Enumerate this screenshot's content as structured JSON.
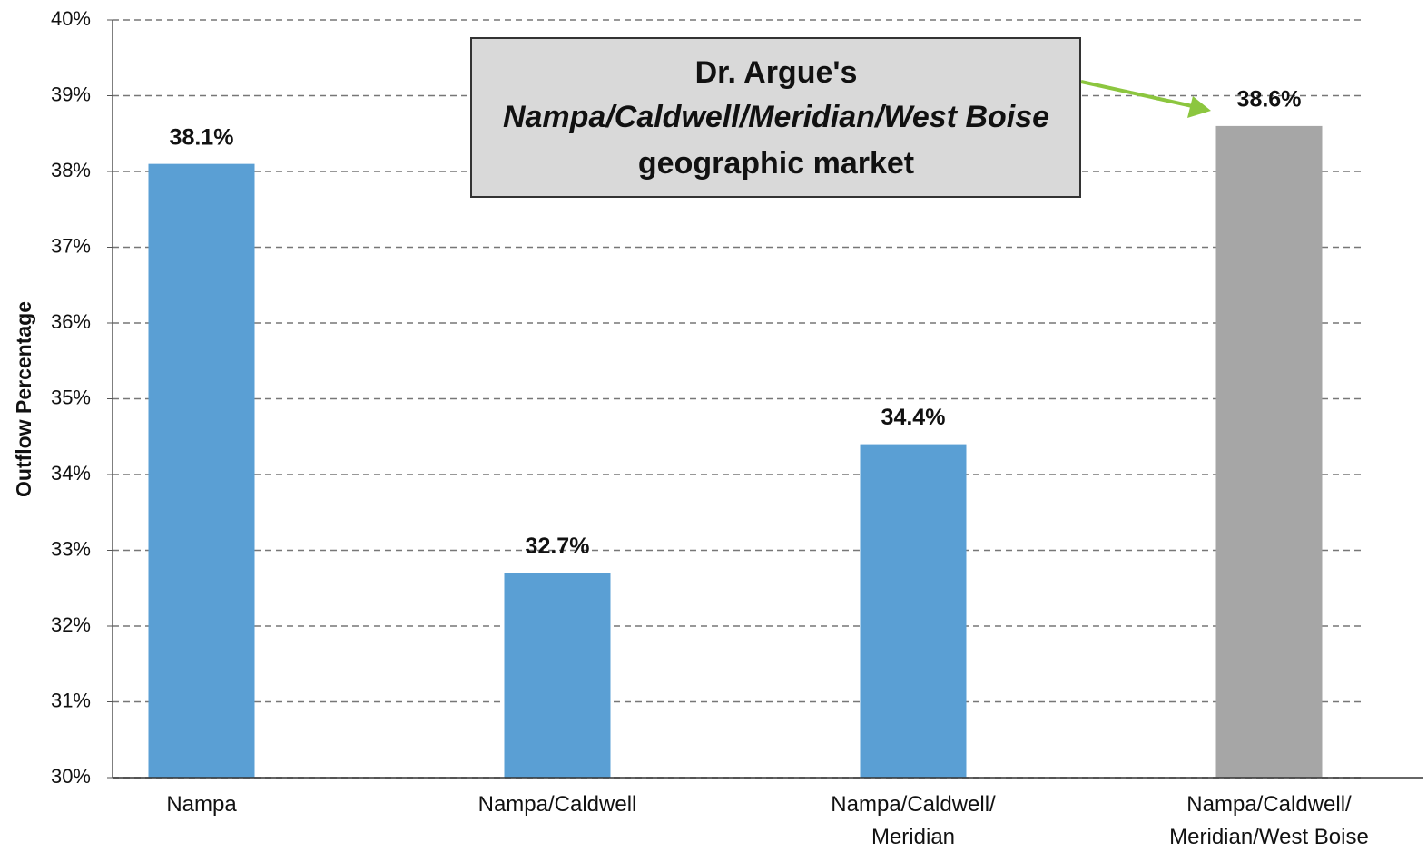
{
  "chart_data": {
    "type": "bar",
    "y_label": "Outflow Percentage",
    "categories": [
      "Nampa",
      "Nampa/Caldwell",
      "Nampa/Caldwell/\nMeridian",
      "Nampa/Caldwell/\nMeridian/West Boise"
    ],
    "values": [
      38.1,
      32.7,
      34.4,
      38.6
    ],
    "value_labels": [
      "38.1%",
      "32.7%",
      "34.4%",
      "38.6%"
    ],
    "colors": [
      "#5a9fd4",
      "#5a9fd4",
      "#5a9fd4",
      "#a6a6a6"
    ],
    "ylim": [
      30,
      40
    ],
    "yticks": [
      {
        "value": 30,
        "label": "30%"
      },
      {
        "value": 31,
        "label": "31%"
      },
      {
        "value": 32,
        "label": "32%"
      },
      {
        "value": 33,
        "label": "33%"
      },
      {
        "value": 34,
        "label": "34%"
      },
      {
        "value": 35,
        "label": "35%"
      },
      {
        "value": 36,
        "label": "36%"
      },
      {
        "value": 37,
        "label": "37%"
      },
      {
        "value": 38,
        "label": "38%"
      },
      {
        "value": 39,
        "label": "39%"
      },
      {
        "value": 40,
        "label": "40%"
      }
    ],
    "grid": true,
    "annotation": [
      "Dr. Argue's",
      "Nampa/Caldwell/Meridian/West Boise",
      "geographic market"
    ]
  }
}
